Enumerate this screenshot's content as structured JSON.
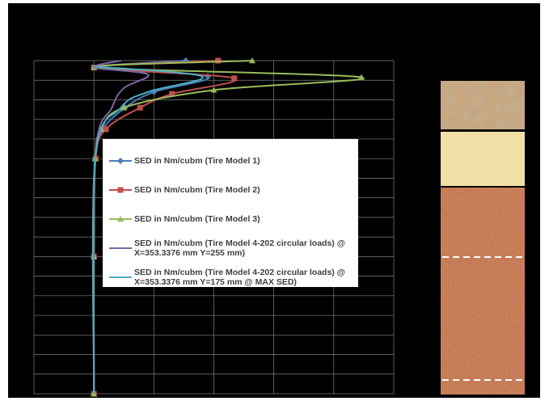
{
  "chart_data": {
    "type": "line",
    "xlim": [
      0,
      6
    ],
    "ylim": [
      0,
      17
    ],
    "xgrid": [
      0,
      1,
      2,
      3,
      4,
      5,
      6
    ],
    "ygrid": [
      0,
      1,
      2,
      3,
      4,
      5,
      6,
      7,
      8,
      9,
      10,
      11,
      12,
      13,
      14,
      15,
      16,
      17
    ],
    "series": [
      {
        "name": "SED in Nm/cubm (Tire Model 1)",
        "color": "#4a7ebb",
        "marker": "diamond",
        "depth": [
          0,
          0.35,
          0.8,
          1.6,
          2.4,
          3.5,
          5,
          10,
          17
        ],
        "values": [
          2.53,
          1.0,
          2.9,
          2.0,
          1.52,
          1.15,
          1.02,
          1.0,
          1.0
        ]
      },
      {
        "name": "SED in Nm/cubm (Tire Model 2)",
        "color": "#c0504d",
        "marker": "square",
        "depth": [
          0,
          0.35,
          0.9,
          1.7,
          2.4,
          3.5,
          5,
          10,
          17
        ],
        "values": [
          3.07,
          1.0,
          3.34,
          2.3,
          1.77,
          1.2,
          1.03,
          1.0,
          1.0
        ]
      },
      {
        "name": "SED in Nm/cubm (Tire Model 3)",
        "color": "#9bbb59",
        "marker": "triangle",
        "depth": [
          0,
          0.35,
          0.85,
          1.5,
          2.4,
          3.5,
          5,
          10,
          17
        ],
        "values": [
          3.64,
          1.0,
          5.46,
          3.0,
          1.5,
          1.12,
          1.02,
          1.0,
          1.0
        ]
      },
      {
        "name": "SED in Nm/cubm (Tire Model 4-202 circular loads) @ X=353.3376 mm Y=255 mm)",
        "color": "#8064a2",
        "marker": "none",
        "depth": [
          0,
          0.35,
          0.7,
          1.4,
          2.4,
          5,
          17
        ],
        "values": [
          1.45,
          1.0,
          1.9,
          1.5,
          1.3,
          1.02,
          1.0
        ]
      },
      {
        "name": "SED in Nm/cubm (Tire Model 4-202 circular loads) @ X=353.3376 mm Y=175 mm @ MAX SED)",
        "color": "#4bacc6",
        "marker": "none",
        "depth": [
          0.3,
          0.8,
          1.6,
          2.4,
          5,
          17
        ],
        "values": [
          1.0,
          2.8,
          1.9,
          1.45,
          1.02,
          1.0
        ]
      }
    ]
  }
}
